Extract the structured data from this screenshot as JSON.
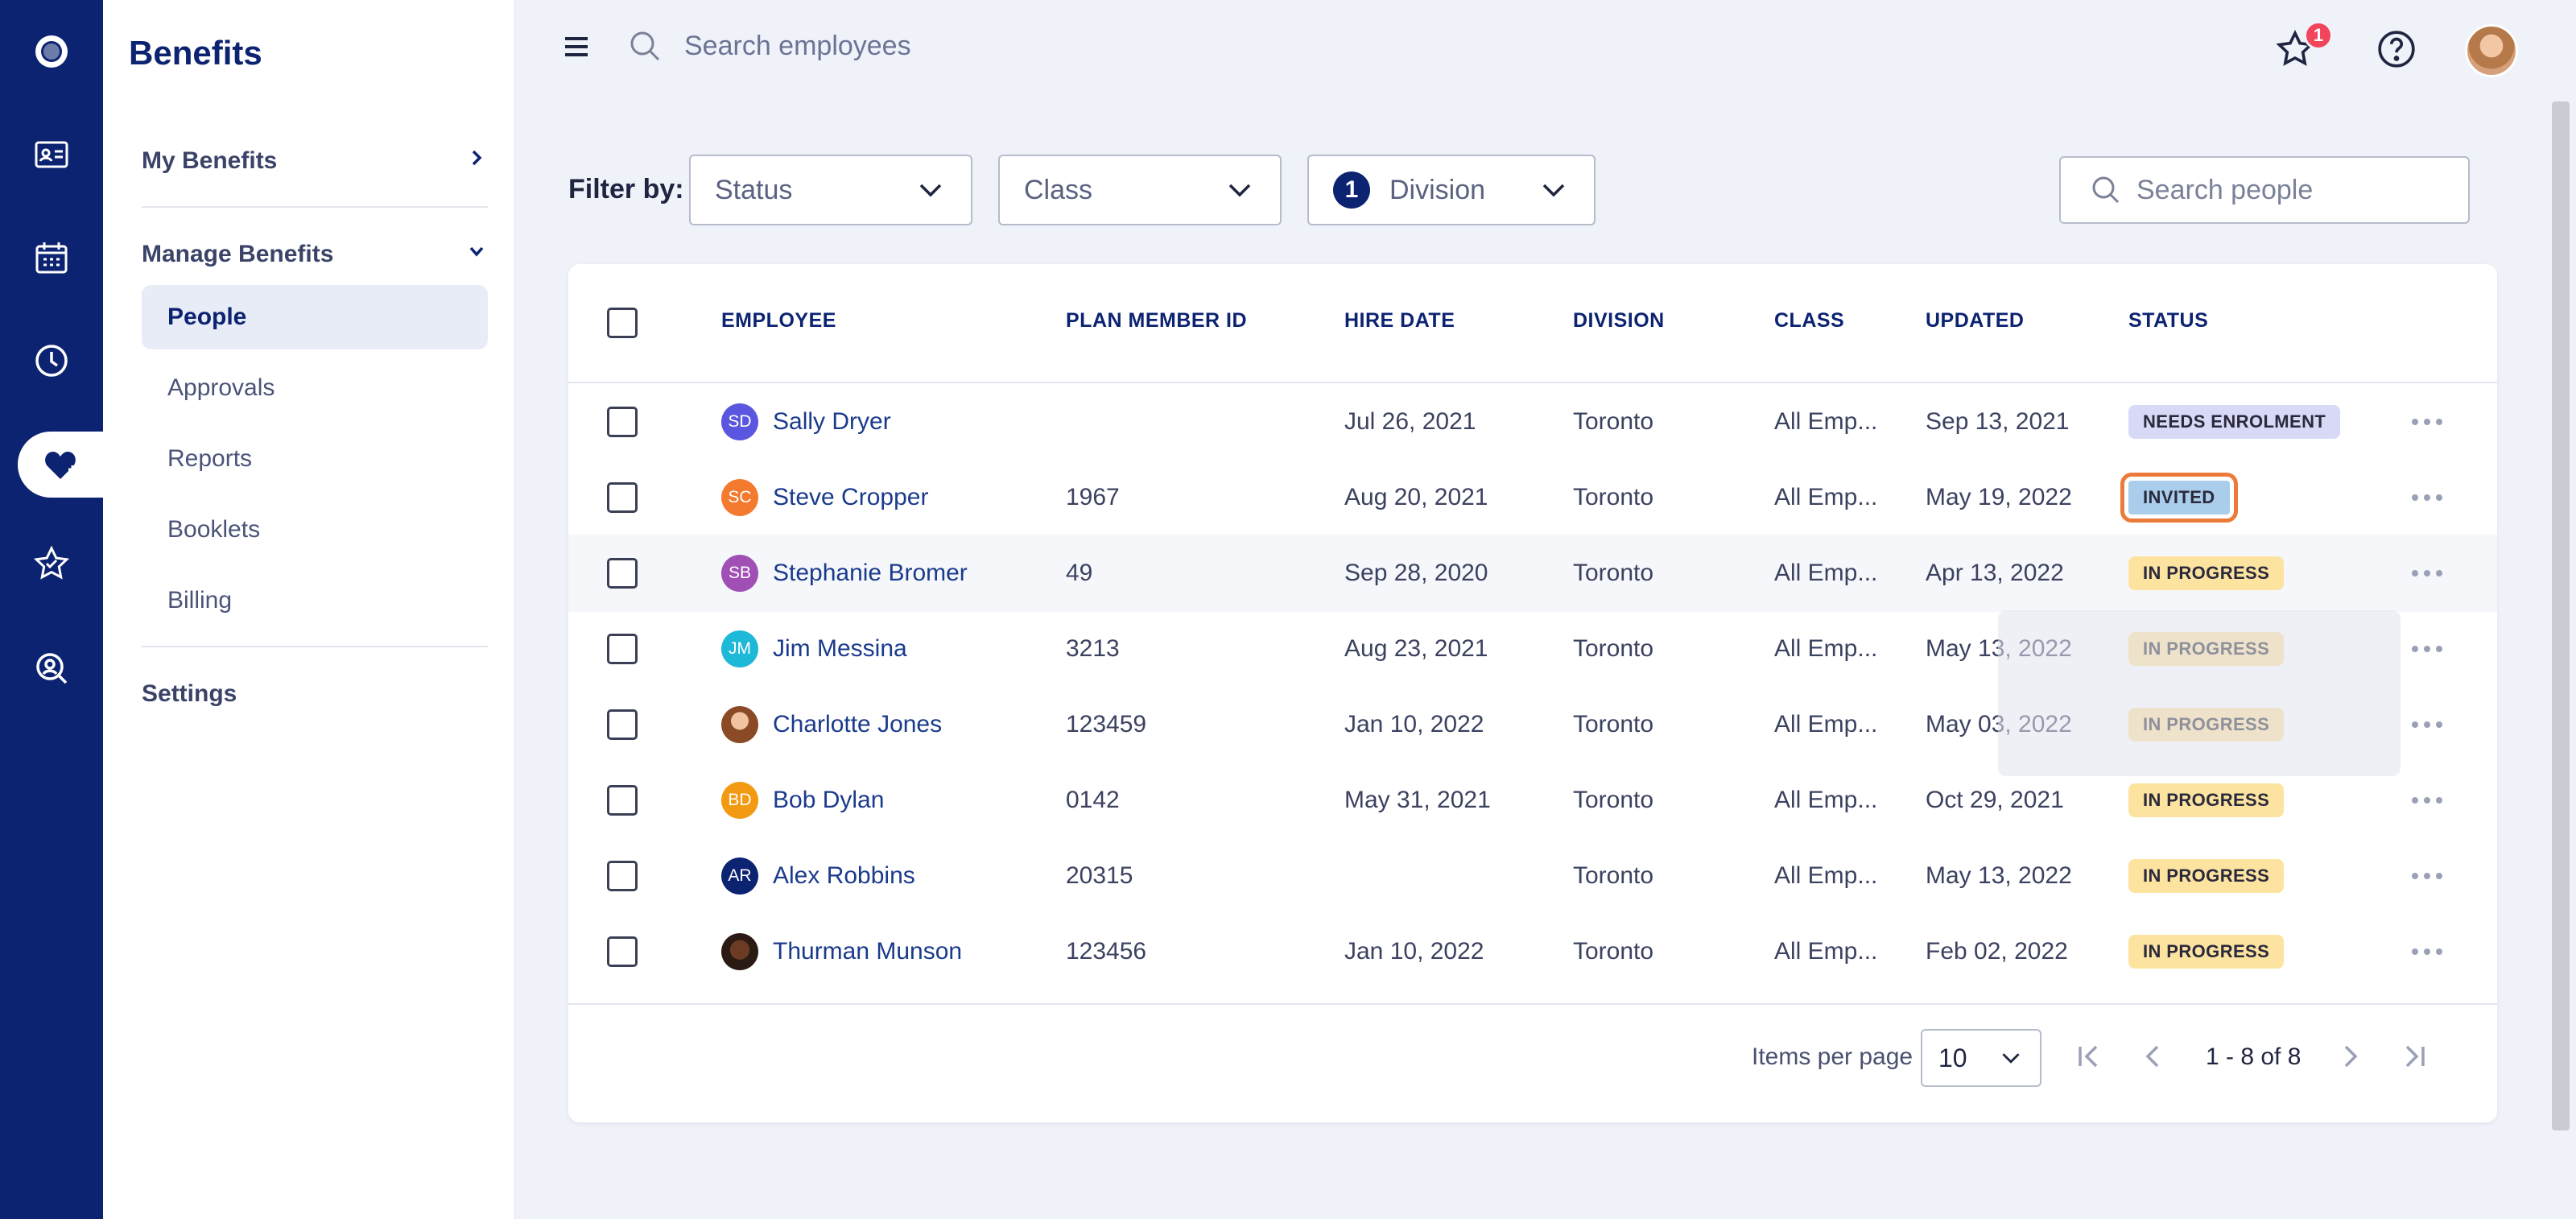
{
  "app": {
    "title": "Benefits"
  },
  "sidebar": {
    "my_benefits": "My Benefits",
    "manage_benefits": "Manage Benefits",
    "items": [
      {
        "label": "People"
      },
      {
        "label": "Approvals"
      },
      {
        "label": "Reports"
      },
      {
        "label": "Booklets"
      },
      {
        "label": "Billing"
      }
    ],
    "settings": "Settings"
  },
  "topbar": {
    "search_placeholder": "Search employees",
    "notification_count": "1"
  },
  "filters": {
    "label": "Filter by:",
    "status": "Status",
    "class": "Class",
    "division": "Division",
    "division_count": "1",
    "search_placeholder": "Search people"
  },
  "table": {
    "columns": [
      "EMPLOYEE",
      "PLAN MEMBER ID",
      "HIRE DATE",
      "DIVISION",
      "CLASS",
      "UPDATED",
      "STATUS"
    ],
    "rows": [
      {
        "initials": "SD",
        "name": "Sally Dryer",
        "id": "",
        "hire": "Jul 26, 2021",
        "division": "Toronto",
        "class": "All Emp...",
        "updated": "Sep 13, 2021",
        "status": "NEEDS ENROLMENT"
      },
      {
        "initials": "SC",
        "name": "Steve Cropper",
        "id": "1967",
        "hire": "Aug 20, 2021",
        "division": "Toronto",
        "class": "All Emp...",
        "updated": "May 19, 2022",
        "status": "INVITED"
      },
      {
        "initials": "SB",
        "name": "Stephanie Bromer",
        "id": "49",
        "hire": "Sep 28, 2020",
        "division": "Toronto",
        "class": "All Emp...",
        "updated": "Apr 13, 2022",
        "status": "IN PROGRESS"
      },
      {
        "initials": "JM",
        "name": "Jim Messina",
        "id": "3213",
        "hire": "Aug 23, 2021",
        "division": "Toronto",
        "class": "All Emp...",
        "updated": "May 13, 2022",
        "status": "IN PROGRESS"
      },
      {
        "initials": "",
        "name": "Charlotte Jones",
        "id": "123459",
        "hire": "Jan 10, 2022",
        "division": "Toronto",
        "class": "All Emp...",
        "updated": "May 03, 2022",
        "status": "IN PROGRESS"
      },
      {
        "initials": "BD",
        "name": "Bob Dylan",
        "id": "0142",
        "hire": "May 31, 2021",
        "division": "Toronto",
        "class": "All Emp...",
        "updated": "Oct 29, 2021",
        "status": "IN PROGRESS"
      },
      {
        "initials": "AR",
        "name": "Alex Robbins",
        "id": "20315",
        "hire": "",
        "division": "Toronto",
        "class": "All Emp...",
        "updated": "May 13, 2022",
        "status": "IN PROGRESS"
      },
      {
        "initials": "",
        "name": "Thurman Munson",
        "id": "123456",
        "hire": "Jan 10, 2022",
        "division": "Toronto",
        "class": "All Emp...",
        "updated": "Feb 02, 2022",
        "status": "IN PROGRESS"
      }
    ]
  },
  "pagination": {
    "items_per_page_label": "Items per page",
    "items_per_page": "10",
    "range": "1 - 8 of 8"
  },
  "colors": {
    "rail": "#0c2371",
    "needs_enrolment": "#d8d9f6",
    "invited": "#a9cdea",
    "in_progress": "#fde3a0",
    "highlight": "#ec7a3a"
  }
}
